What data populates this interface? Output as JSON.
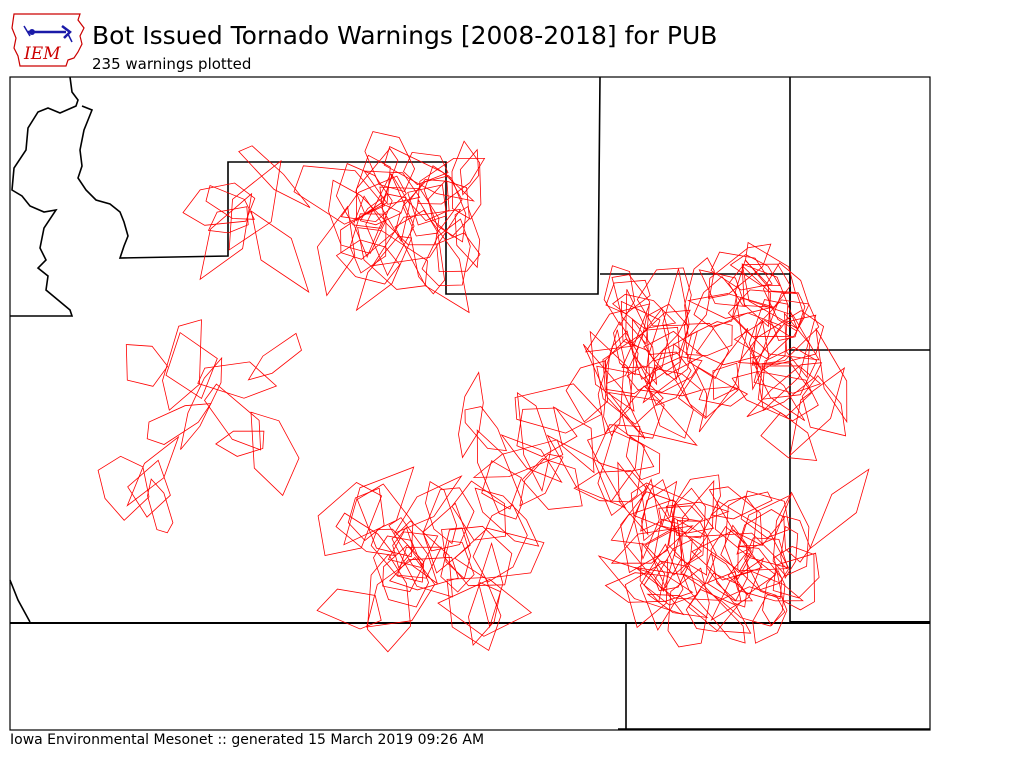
{
  "header": {
    "title": "Bot Issued Tornado Warnings [2008-2018] for PUB",
    "subtitle": "235 warnings plotted"
  },
  "logo": {
    "text": "IEM",
    "icon": "iowa-state-outline-icon"
  },
  "footer": {
    "credit": "Iowa Environmental Mesonet :: generated 15 March 2019 09:26 AM"
  },
  "colors": {
    "warning_outline": "#ff0000",
    "boundary": "#000000",
    "logo_blue": "#1a1aa8",
    "logo_red": "#cc0000"
  },
  "map": {
    "warning_count": 235
  }
}
